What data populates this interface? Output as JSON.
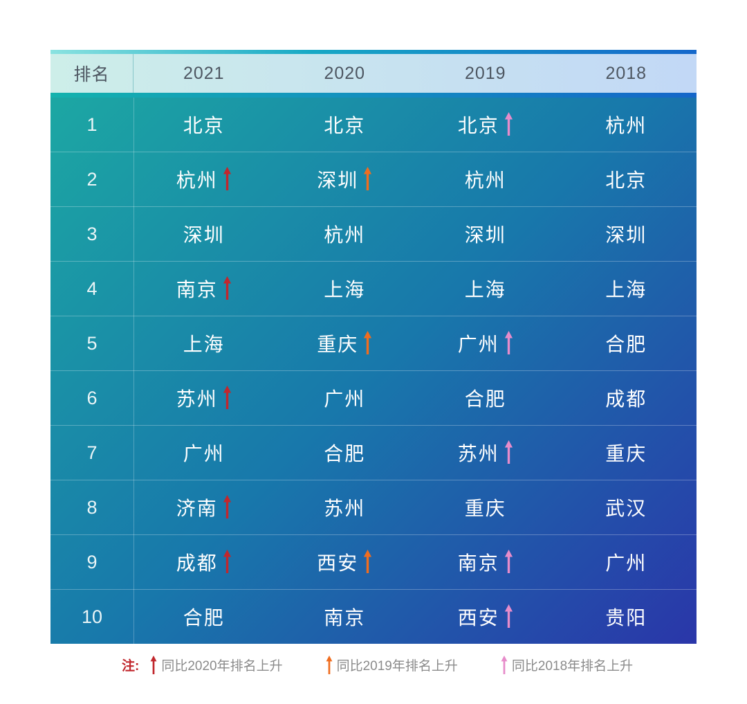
{
  "colors": {
    "arrow_red": "#c1272d",
    "arrow_orange": "#f06d1f",
    "arrow_pink": "#e78cca",
    "note_red": "#c1272d",
    "legend_text": "#8a8a8a",
    "header_text": "#4d5661",
    "cell_text": "#ffffff",
    "strip_top": [
      "#8ae2e0",
      "#18a9c5",
      "#1467cb"
    ],
    "strip_mid": [
      "#14b2ad",
      "#1496bd",
      "#1566c9"
    ],
    "header_band": [
      "#cdeee9",
      "#c2d8f6"
    ],
    "body_gradient": [
      "#1ca7a3",
      "#1878ab",
      "#2a36a9"
    ]
  },
  "chart_data": {
    "type": "table",
    "columns": [
      "排名",
      "2021",
      "2020",
      "2019",
      "2018"
    ],
    "arrow_meaning": {
      "red": "同比2020年排名上升",
      "orange": "同比2019年排名上升",
      "pink": "同比2018年排名上升"
    },
    "rows": [
      {
        "rank": "1",
        "cells": [
          {
            "city": "北京"
          },
          {
            "city": "北京"
          },
          {
            "city": "北京",
            "arrow": "pink"
          },
          {
            "city": "杭州"
          }
        ]
      },
      {
        "rank": "2",
        "cells": [
          {
            "city": "杭州",
            "arrow": "red"
          },
          {
            "city": "深圳",
            "arrow": "orange"
          },
          {
            "city": "杭州"
          },
          {
            "city": "北京"
          }
        ]
      },
      {
        "rank": "3",
        "cells": [
          {
            "city": "深圳"
          },
          {
            "city": "杭州"
          },
          {
            "city": "深圳"
          },
          {
            "city": "深圳"
          }
        ]
      },
      {
        "rank": "4",
        "cells": [
          {
            "city": "南京",
            "arrow": "red"
          },
          {
            "city": "上海"
          },
          {
            "city": "上海"
          },
          {
            "city": "上海"
          }
        ]
      },
      {
        "rank": "5",
        "cells": [
          {
            "city": "上海"
          },
          {
            "city": "重庆",
            "arrow": "orange"
          },
          {
            "city": "广州",
            "arrow": "pink"
          },
          {
            "city": "合肥"
          }
        ]
      },
      {
        "rank": "6",
        "cells": [
          {
            "city": "苏州",
            "arrow": "red"
          },
          {
            "city": "广州"
          },
          {
            "city": "合肥"
          },
          {
            "city": "成都"
          }
        ]
      },
      {
        "rank": "7",
        "cells": [
          {
            "city": "广州"
          },
          {
            "city": "合肥"
          },
          {
            "city": "苏州",
            "arrow": "pink"
          },
          {
            "city": "重庆"
          }
        ]
      },
      {
        "rank": "8",
        "cells": [
          {
            "city": "济南",
            "arrow": "red"
          },
          {
            "city": "苏州"
          },
          {
            "city": "重庆"
          },
          {
            "city": "武汉"
          }
        ]
      },
      {
        "rank": "9",
        "cells": [
          {
            "city": "成都",
            "arrow": "red"
          },
          {
            "city": "西安",
            "arrow": "orange"
          },
          {
            "city": "南京",
            "arrow": "pink"
          },
          {
            "city": "广州"
          }
        ]
      },
      {
        "rank": "10",
        "cells": [
          {
            "city": "合肥"
          },
          {
            "city": "南京"
          },
          {
            "city": "西安",
            "arrow": "pink"
          },
          {
            "city": "贵阳"
          }
        ]
      }
    ],
    "legend": {
      "note_label": "注:",
      "items": [
        {
          "arrow": "red",
          "text": "同比2020年排名上升"
        },
        {
          "arrow": "orange",
          "text": "同比2019年排名上升"
        },
        {
          "arrow": "pink",
          "text": "同比2018年排名上升"
        }
      ]
    }
  }
}
